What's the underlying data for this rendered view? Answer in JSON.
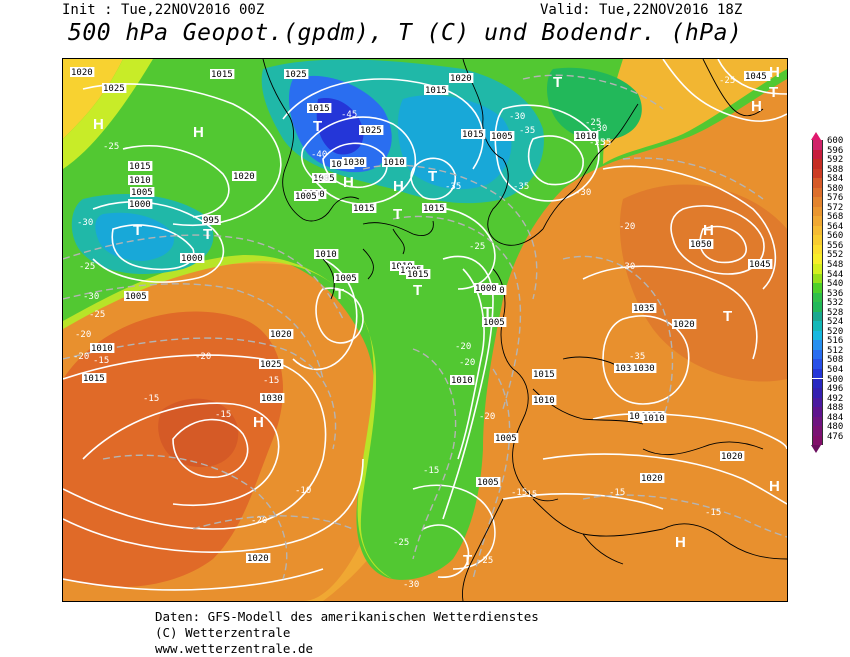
{
  "header": {
    "init": "Init : Tue,22NOV2016 00Z",
    "valid": "Valid: Tue,22NOV2016 18Z",
    "title": "500 hPa Geopot.(gpdm), T (C) und Bodendr. (hPa)"
  },
  "credits": {
    "line1": "Daten: GFS-Modell des amerikanischen Wetterdienstes",
    "line2": "(C) Wetterzentrale",
    "line3": "www.wetterzentrale.de"
  },
  "legend": {
    "levels": [
      "600",
      "596",
      "592",
      "588",
      "584",
      "580",
      "576",
      "572",
      "568",
      "564",
      "560",
      "556",
      "552",
      "548",
      "544",
      "540",
      "536",
      "532",
      "528",
      "524",
      "520",
      "516",
      "512",
      "508",
      "504",
      "500",
      "496",
      "492",
      "488",
      "484",
      "480",
      "476"
    ],
    "colors": [
      "#d0246a",
      "#c81e3c",
      "#c52d23",
      "#cc3c24",
      "#d65a28",
      "#dd6f2c",
      "#e3842e",
      "#ea9630",
      "#f0a833",
      "#f5bb33",
      "#f8cc30",
      "#fcde2e",
      "#f8ee2a",
      "#d4f01f",
      "#96e01a",
      "#4ed02a",
      "#30c04a",
      "#22b85a",
      "#1aa890",
      "#14b8b8",
      "#18b8e0",
      "#2890f0",
      "#2a6ef0",
      "#2850e8",
      "#2436d8",
      "#2828c0",
      "#3420b0",
      "#4a1aa0",
      "#5e148e",
      "#6e1480",
      "#7a1274",
      "#820e6a"
    ],
    "top_arrow_color": "#e0186e",
    "bottom_arrow_color": "#6a0e5e"
  },
  "map": {
    "pressure_labels": [
      "1020",
      "1025",
      "1015",
      "1025",
      "1020",
      "1025",
      "1015",
      "1010",
      "1005",
      "1000",
      "995",
      "1000",
      "1005",
      "1010",
      "1015",
      "1015",
      "1010",
      "1005",
      "1030",
      "1020",
      "1015",
      "1010",
      "1015",
      "1005",
      "1000",
      "1005",
      "1010",
      "1015",
      "1025",
      "1030",
      "1025",
      "1020",
      "1020",
      "1005",
      "1010",
      "1015",
      "1045",
      "1045",
      "1050",
      "1035",
      "1030",
      "1025",
      "1020",
      "1010",
      "1005",
      "1000",
      "1010",
      "1005",
      "1010",
      "1020",
      "1030",
      "1025",
      "1020",
      "1005",
      "1010",
      "1010",
      "1005",
      "1015",
      "1015"
    ],
    "temperature_labels": [
      "-25",
      "-30",
      "-25",
      "-30",
      "-25",
      "-20",
      "-20",
      "-15",
      "-15",
      "-15",
      "-15",
      "-20",
      "-25",
      "-30",
      "-45",
      "-40",
      "-40",
      "-35",
      "-35",
      "-30",
      "-35",
      "-35",
      "-30",
      "-25",
      "-25",
      "-25",
      "-30",
      "-25",
      "-20",
      "-20",
      "-20",
      "-15",
      "-10",
      "-15",
      "-15",
      "-15",
      "-25",
      "-15",
      "-30",
      "-35",
      "-20",
      "-20"
    ],
    "high_marker": "H",
    "low_marker": "T"
  }
}
